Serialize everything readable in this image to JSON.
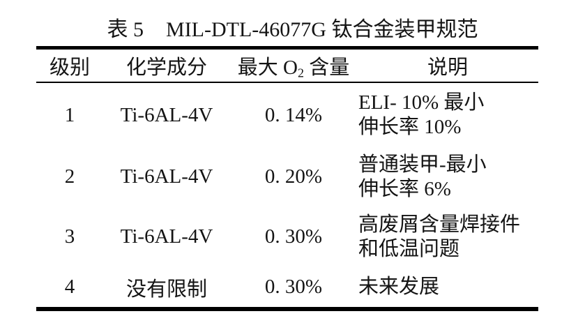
{
  "table": {
    "title": {
      "label": "表 5",
      "spec": "MIL-DTL-46077G 钛合金装甲规范"
    },
    "columns": {
      "grade": "级别",
      "composition": "化学成分",
      "max_o2_prefix": "最大 O",
      "max_o2_sub": "2",
      "max_o2_suffix": " 含量",
      "description": "说明"
    },
    "rows": [
      {
        "grade": "1",
        "composition": "Ti-6AL-4V",
        "max_o2": "0. 14%",
        "description_line1": "ELI- 10% 最小",
        "description_line2": "伸长率 10%"
      },
      {
        "grade": "2",
        "composition": "Ti-6AL-4V",
        "max_o2": "0. 20%",
        "description_line1": "普通装甲-最小",
        "description_line2": "伸长率 6%"
      },
      {
        "grade": "3",
        "composition": "Ti-6AL-4V",
        "max_o2": "0. 30%",
        "description_line1": "高废屑含量焊接件",
        "description_line2": "和低温问题"
      },
      {
        "grade": "4",
        "composition": "没有限制",
        "max_o2": "0. 30%",
        "description_line1": "未来发展",
        "description_line2": ""
      }
    ]
  }
}
